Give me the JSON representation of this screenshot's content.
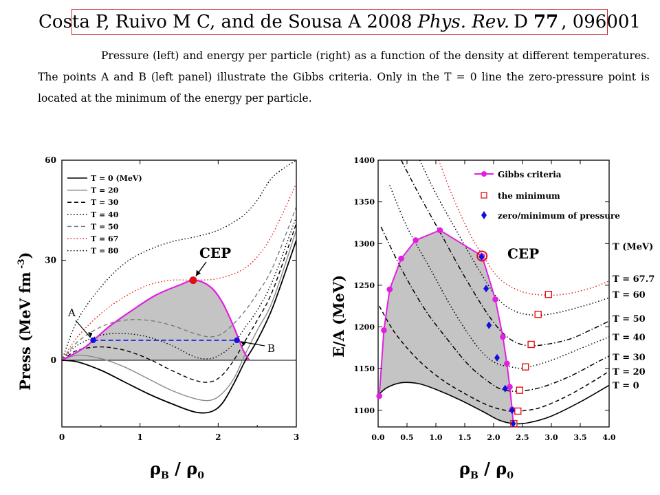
{
  "citation": {
    "authors": "Costa P, Ruivo M C, and de Sousa A 2008",
    "journal": "Phys. Rev.",
    "series": "D",
    "volume": "77",
    "article": "096001"
  },
  "caption": "Pressure (left) and energy per particle (right) as a function of the density at different temperatures. The points A and B (left panel) illustrate the Gibbs criteria. Only in the T = 0 line the zero-pressure point is located at the minimum of the energy per particle.",
  "colors": {
    "gibbs": "#e020e0",
    "cep": "#e01010",
    "shaded": "#c4c4c4",
    "zero_pressure": "#1010e0",
    "t67": "#e02020"
  },
  "chart_data": [
    {
      "type": "line",
      "xlabel": "ρB / ρ0",
      "ylabel": "Press (MeV fm -3)",
      "xlim": [
        0,
        3
      ],
      "ylim": [
        -20,
        60
      ],
      "xticks": [
        "0",
        "1",
        "2",
        "3"
      ],
      "yticks": [
        "0",
        "30",
        "60"
      ],
      "legend_position": "top-left",
      "series": [
        {
          "name": "T = 0 (MeV)",
          "style": "solid",
          "color": "#000000",
          "x": [
            0,
            0.2,
            0.5,
            0.8,
            1.1,
            1.4,
            1.7,
            1.9,
            2.05,
            2.2,
            2.35,
            2.5,
            2.7,
            3.0
          ],
          "y": [
            0,
            -0.5,
            -3,
            -6.5,
            -10,
            -13,
            -15.5,
            -15.5,
            -13,
            -7,
            0,
            6,
            16,
            36
          ]
        },
        {
          "name": "T = 20",
          "style": "solid",
          "color": "#8a8a8a",
          "x": [
            0,
            0.2,
            0.5,
            0.8,
            1.1,
            1.4,
            1.7,
            1.9,
            2.05,
            2.2,
            2.35,
            2.5,
            2.7,
            3.0
          ],
          "y": [
            0,
            1.5,
            0.5,
            -2,
            -5.5,
            -9,
            -11.5,
            -12,
            -10,
            -5.5,
            2,
            9,
            18,
            39
          ]
        },
        {
          "name": "T = 30",
          "style": "dashed",
          "color": "#000000",
          "x": [
            0,
            0.2,
            0.5,
            0.8,
            1.1,
            1.4,
            1.7,
            1.9,
            2.05,
            2.2,
            2.35,
            2.5,
            2.7,
            3.0
          ],
          "y": [
            0,
            3,
            4,
            3,
            0.5,
            -3,
            -6,
            -6.5,
            -4.5,
            0,
            6,
            12,
            21,
            41
          ]
        },
        {
          "name": "T = 40",
          "style": "dotted",
          "color": "#000000",
          "x": [
            0,
            0.2,
            0.5,
            0.8,
            1.1,
            1.4,
            1.7,
            1.9,
            2.05,
            2.2,
            2.35,
            2.5,
            2.7,
            3.0
          ],
          "y": [
            0,
            4.5,
            7.5,
            8,
            7,
            4.5,
            1,
            0.5,
            2,
            5,
            10,
            15,
            24,
            43
          ]
        },
        {
          "name": "T = 50",
          "style": "dashed",
          "color": "#7a7a7a",
          "x": [
            0,
            0.2,
            0.5,
            0.8,
            1.1,
            1.4,
            1.7,
            1.9,
            2.05,
            2.2,
            2.35,
            2.5,
            2.7,
            3.0
          ],
          "y": [
            0,
            5.5,
            10,
            12,
            12,
            10.5,
            8,
            7,
            8,
            11,
            15,
            20,
            28,
            46
          ]
        },
        {
          "name": "T = 67",
          "style": "dotted",
          "color": "#e02020",
          "x": [
            0,
            0.2,
            0.5,
            0.8,
            1.1,
            1.4,
            1.7,
            2.0,
            2.3,
            2.5,
            2.7,
            3.0
          ],
          "y": [
            0,
            7,
            14,
            19,
            22.5,
            24,
            24,
            24.5,
            27,
            31,
            38,
            53
          ]
        },
        {
          "name": "T = 80",
          "style": "dotted",
          "color": "#000000",
          "x": [
            0,
            0.2,
            0.5,
            0.8,
            1.1,
            1.4,
            1.7,
            2.0,
            2.3,
            2.5,
            2.7,
            3.0
          ],
          "y": [
            0,
            12,
            22,
            29,
            33,
            35.5,
            37,
            39,
            43,
            48,
            55,
            60
          ]
        }
      ],
      "coexistence_boundary": {
        "x": [
          0,
          0.3,
          0.6,
          0.9,
          1.2,
          1.5,
          1.7,
          1.9,
          2.05,
          2.2,
          2.32,
          2.4
        ],
        "y": [
          0,
          4,
          10,
          15,
          19.5,
          22.5,
          24,
          22,
          17.5,
          10,
          3,
          0
        ]
      },
      "gibbs_line": {
        "x": [
          0.4,
          2.24
        ],
        "y": [
          6,
          6
        ]
      },
      "annotations": [
        {
          "label": "A",
          "x": 0.4,
          "y": 6
        },
        {
          "label": "B",
          "x": 2.24,
          "y": 6
        },
        {
          "label": "CEP",
          "x": 1.68,
          "y": 24
        }
      ]
    },
    {
      "type": "line",
      "xlabel": "ρB / ρ0",
      "ylabel": "E/A (MeV)",
      "xlim": [
        0,
        4
      ],
      "ylim": [
        1080,
        1400
      ],
      "xticks": [
        "0.0",
        "0.5",
        "1.0",
        "1.5",
        "2.0",
        "2.5",
        "3.0",
        "3.5",
        "4.0"
      ],
      "yticks": [
        "1100",
        "1150",
        "1200",
        "1250",
        "1300",
        "1350",
        "1400"
      ],
      "legend": [
        "Gibbs criteria",
        "the minimum",
        "zero/minimum of pressure"
      ],
      "legend_position": "top-right",
      "temperature_header": "T (MeV)",
      "series": [
        {
          "name": "T = 67.7",
          "style": "dotted",
          "color": "#e02020",
          "x": [
            1.05,
            1.3,
            1.6,
            1.82,
            2.1,
            2.5,
            2.95,
            3.3,
            3.7,
            4.0
          ],
          "y": [
            1400,
            1355,
            1310,
            1285,
            1258,
            1242,
            1238,
            1240,
            1247,
            1255
          ]
        },
        {
          "name": "T = 60",
          "style": "dotted",
          "color": "#000000",
          "x": [
            0.72,
            1.0,
            1.4,
            1.8,
            2.1,
            2.4,
            2.75,
            3.1,
            3.6,
            4.0
          ],
          "y": [
            1400,
            1360,
            1310,
            1262,
            1232,
            1218,
            1214,
            1217,
            1226,
            1235
          ]
        },
        {
          "name": "T = 50",
          "style": "dashdot",
          "color": "#000000",
          "x": [
            0.4,
            0.7,
            1.1,
            1.5,
            1.9,
            2.2,
            2.48,
            2.8,
            3.3,
            3.7,
            4.0
          ],
          "y": [
            1400,
            1360,
            1310,
            1260,
            1215,
            1190,
            1179,
            1178,
            1185,
            1197,
            1207
          ]
        },
        {
          "name": "T = 40",
          "style": "dotted",
          "color": "#000000",
          "x": [
            0.2,
            0.5,
            0.9,
            1.3,
            1.7,
            2.0,
            2.3,
            2.55,
            3.0,
            3.5,
            4.0
          ],
          "y": [
            1370,
            1320,
            1270,
            1220,
            1178,
            1158,
            1152,
            1151,
            1160,
            1174,
            1188
          ]
        },
        {
          "name": "T = 30",
          "style": "dashdot",
          "color": "#000000",
          "x": [
            0.05,
            0.4,
            0.8,
            1.2,
            1.6,
            2.0,
            2.2,
            2.42,
            2.8,
            3.3,
            3.8,
            4.0
          ],
          "y": [
            1320,
            1270,
            1222,
            1185,
            1152,
            1130,
            1124,
            1123,
            1127,
            1140,
            1158,
            1165
          ]
        },
        {
          "name": "T = 20",
          "style": "dashed",
          "color": "#000000",
          "x": [
            0.02,
            0.3,
            0.7,
            1.1,
            1.5,
            1.9,
            2.2,
            2.42,
            2.8,
            3.3,
            3.8,
            4.0
          ],
          "y": [
            1225,
            1192,
            1160,
            1137,
            1120,
            1106,
            1100,
            1099,
            1103,
            1118,
            1138,
            1147
          ]
        },
        {
          "name": "T = 0",
          "style": "solid",
          "color": "#000000",
          "x": [
            0.0,
            0.15,
            0.4,
            0.7,
            1.0,
            1.4,
            1.8,
            2.1,
            2.34,
            2.6,
            3.0,
            3.5,
            4.0
          ],
          "y": [
            1118,
            1127,
            1133,
            1132,
            1125,
            1113,
            1099,
            1088,
            1084,
            1085,
            1093,
            1110,
            1130
          ]
        }
      ],
      "gibbs_points": {
        "x": [
          0.02,
          0.1,
          0.2,
          0.4,
          0.65,
          1.07,
          1.8,
          2.03,
          2.16,
          2.23,
          2.28,
          2.32,
          2.34
        ],
        "y": [
          1117,
          1196,
          1245,
          1282,
          1304,
          1316,
          1285,
          1233,
          1188,
          1156,
          1128,
          1101,
          1085
        ]
      },
      "minimum_points": {
        "x": [
          2.35,
          2.42,
          2.45,
          2.55,
          2.65,
          2.77,
          2.95
        ],
        "y": [
          1084,
          1099,
          1124,
          1152,
          1179,
          1215,
          1239
        ]
      },
      "zero_pressure_points": {
        "x": [
          2.34,
          2.32,
          2.2,
          2.06,
          1.92,
          1.87,
          1.79
        ],
        "y": [
          1084,
          1100,
          1126,
          1163,
          1202,
          1246,
          1284
        ]
      },
      "annotations": [
        {
          "label": "CEP",
          "x": 1.8,
          "y": 1285
        }
      ]
    }
  ]
}
